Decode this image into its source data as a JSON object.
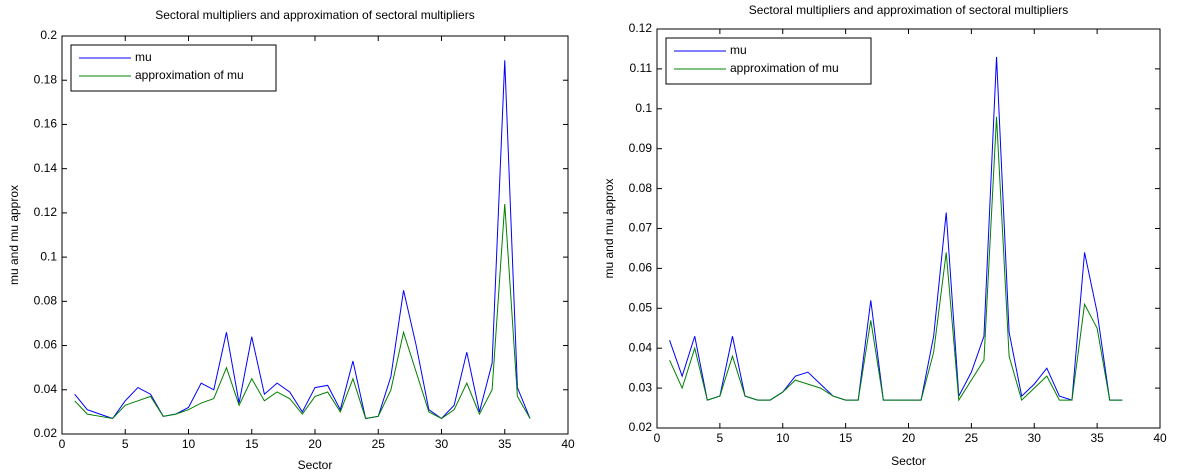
{
  "chart_data": [
    {
      "type": "line",
      "title": "Sectoral multipliers and approximation of sectoral multipliers",
      "x_label": "Sector",
      "y_label": "mu and mu approx",
      "x": [
        1,
        2,
        3,
        4,
        5,
        6,
        7,
        8,
        9,
        10,
        11,
        12,
        13,
        14,
        15,
        16,
        17,
        18,
        19,
        20,
        21,
        22,
        23,
        24,
        25,
        26,
        27,
        28,
        29,
        30,
        31,
        32,
        33,
        34,
        35,
        36,
        37
      ],
      "series": [
        {
          "name": "mu",
          "color": "#0000ff",
          "values": [
            0.038,
            0.031,
            0.029,
            0.027,
            0.035,
            0.041,
            0.038,
            0.028,
            0.029,
            0.032,
            0.043,
            0.04,
            0.066,
            0.034,
            0.064,
            0.038,
            0.043,
            0.039,
            0.03,
            0.041,
            0.042,
            0.031,
            0.053,
            0.027,
            0.028,
            0.046,
            0.085,
            0.06,
            0.031,
            0.027,
            0.033,
            0.057,
            0.03,
            0.052,
            0.189,
            0.041,
            0.027
          ]
        },
        {
          "name": "approximation of mu",
          "color": "#008000",
          "values": [
            0.035,
            0.029,
            0.028,
            0.027,
            0.033,
            0.035,
            0.037,
            0.028,
            0.029,
            0.031,
            0.034,
            0.036,
            0.05,
            0.033,
            0.045,
            0.035,
            0.039,
            0.036,
            0.029,
            0.037,
            0.039,
            0.03,
            0.045,
            0.027,
            0.028,
            0.04,
            0.066,
            0.048,
            0.03,
            0.027,
            0.031,
            0.043,
            0.029,
            0.04,
            0.124,
            0.037,
            0.027
          ]
        }
      ],
      "xlim": [
        0,
        40
      ],
      "xticks": [
        0,
        5,
        10,
        15,
        20,
        25,
        30,
        35,
        40
      ],
      "ylim": [
        0.02,
        0.2
      ],
      "yticks": [
        0.02,
        0.04,
        0.06,
        0.08,
        0.1,
        0.12,
        0.14,
        0.16,
        0.18,
        0.2
      ],
      "legend": "upper left"
    },
    {
      "type": "line",
      "title": "Sectoral multipliers and approximation of sectoral multipliers",
      "x_label": "Sector",
      "y_label": "mu and mu approx",
      "x": [
        1,
        2,
        3,
        4,
        5,
        6,
        7,
        8,
        9,
        10,
        11,
        12,
        13,
        14,
        15,
        16,
        17,
        18,
        19,
        20,
        21,
        22,
        23,
        24,
        25,
        26,
        27,
        28,
        29,
        30,
        31,
        32,
        33,
        34,
        35,
        36,
        37
      ],
      "series": [
        {
          "name": "mu",
          "color": "#0000ff",
          "values": [
            0.042,
            0.033,
            0.043,
            0.027,
            0.028,
            0.043,
            0.028,
            0.027,
            0.027,
            0.029,
            0.033,
            0.034,
            0.031,
            0.028,
            0.027,
            0.027,
            0.052,
            0.027,
            0.027,
            0.027,
            0.027,
            0.043,
            0.074,
            0.028,
            0.034,
            0.043,
            0.113,
            0.044,
            0.028,
            0.031,
            0.035,
            0.028,
            0.027,
            0.064,
            0.049,
            0.027,
            0.027
          ]
        },
        {
          "name": "approximation of mu",
          "color": "#008000",
          "values": [
            0.037,
            0.03,
            0.04,
            0.027,
            0.028,
            0.038,
            0.028,
            0.027,
            0.027,
            0.029,
            0.032,
            0.031,
            0.03,
            0.028,
            0.027,
            0.027,
            0.047,
            0.027,
            0.027,
            0.027,
            0.027,
            0.039,
            0.064,
            0.027,
            0.032,
            0.037,
            0.098,
            0.038,
            0.027,
            0.03,
            0.033,
            0.027,
            0.027,
            0.051,
            0.045,
            0.027,
            0.027
          ]
        }
      ],
      "xlim": [
        0,
        40
      ],
      "xticks": [
        0,
        5,
        10,
        15,
        20,
        25,
        30,
        35,
        40
      ],
      "ylim": [
        0.02,
        0.12
      ],
      "yticks": [
        0.02,
        0.03,
        0.04,
        0.05,
        0.06,
        0.07,
        0.08,
        0.09,
        0.1,
        0.11,
        0.12
      ],
      "legend": "upper left"
    }
  ]
}
